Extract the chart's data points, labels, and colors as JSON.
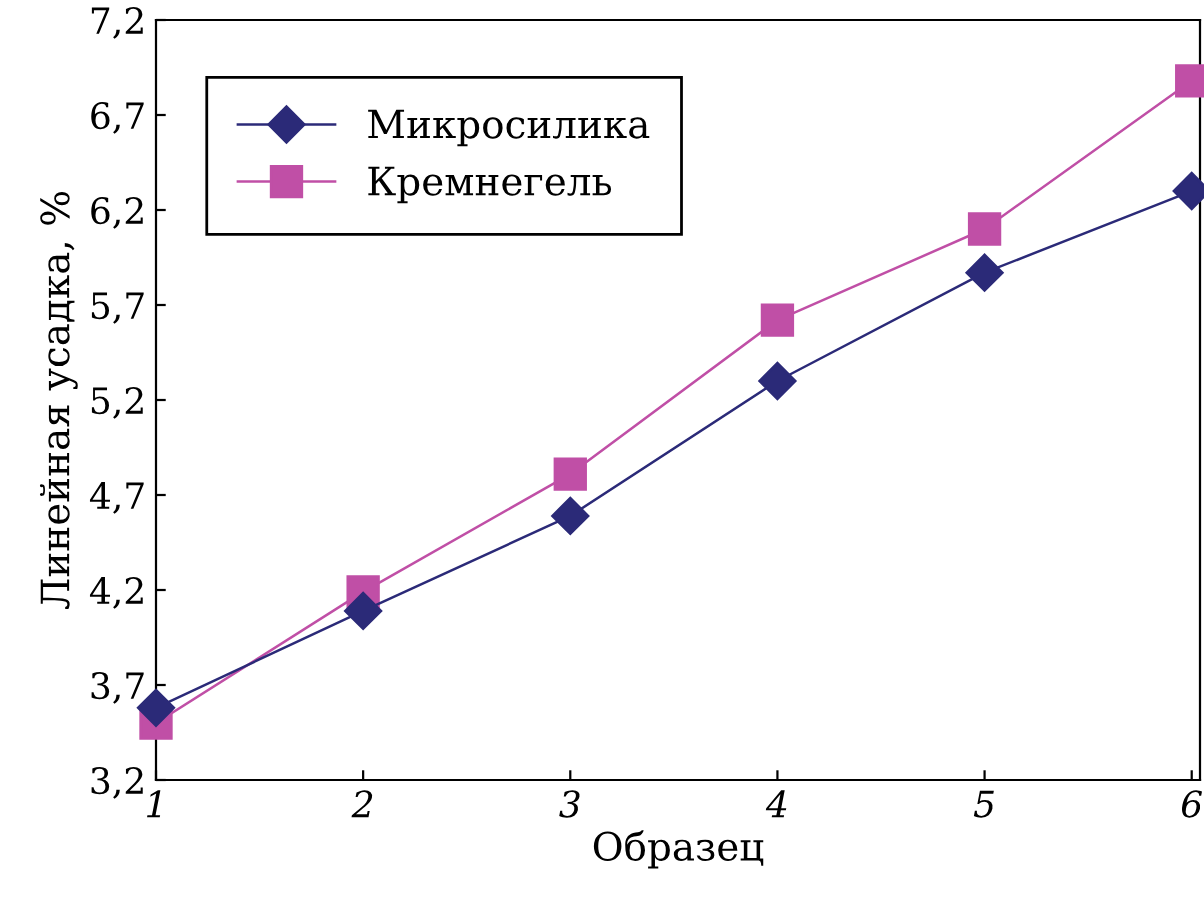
{
  "chart_data": {
    "type": "line",
    "xlabel": "Образец",
    "ylabel": "Линейная усадка, %",
    "x": [
      1,
      2,
      3,
      4,
      5,
      6
    ],
    "series": [
      {
        "name": "Микросилика",
        "color": "#2b2a78",
        "marker": "diamond",
        "values": [
          3.58,
          4.09,
          4.59,
          5.3,
          5.87,
          6.3
        ]
      },
      {
        "name": "Кремнегель",
        "color": "#c04fa6",
        "marker": "square",
        "values": [
          3.5,
          4.19,
          4.81,
          5.62,
          6.1,
          6.88
        ]
      }
    ],
    "xlim": [
      1,
      6.04
    ],
    "xticks": [
      1,
      2,
      3,
      4,
      5,
      6
    ],
    "ylim": [
      3.2,
      7.2
    ],
    "yticks": [
      {
        "value": 3.2,
        "label": "3,2"
      },
      {
        "value": 3.7,
        "label": "3,7"
      },
      {
        "value": 4.2,
        "label": "4,2"
      },
      {
        "value": 4.7,
        "label": "4,7"
      },
      {
        "value": 5.2,
        "label": "5,2"
      },
      {
        "value": 5.7,
        "label": "5,7"
      },
      {
        "value": 6.2,
        "label": "6,2"
      },
      {
        "value": 6.7,
        "label": "6,7"
      },
      {
        "value": 7.2,
        "label": "7,2"
      }
    ],
    "grid": false,
    "legend": "top left",
    "line_style": "solid"
  }
}
